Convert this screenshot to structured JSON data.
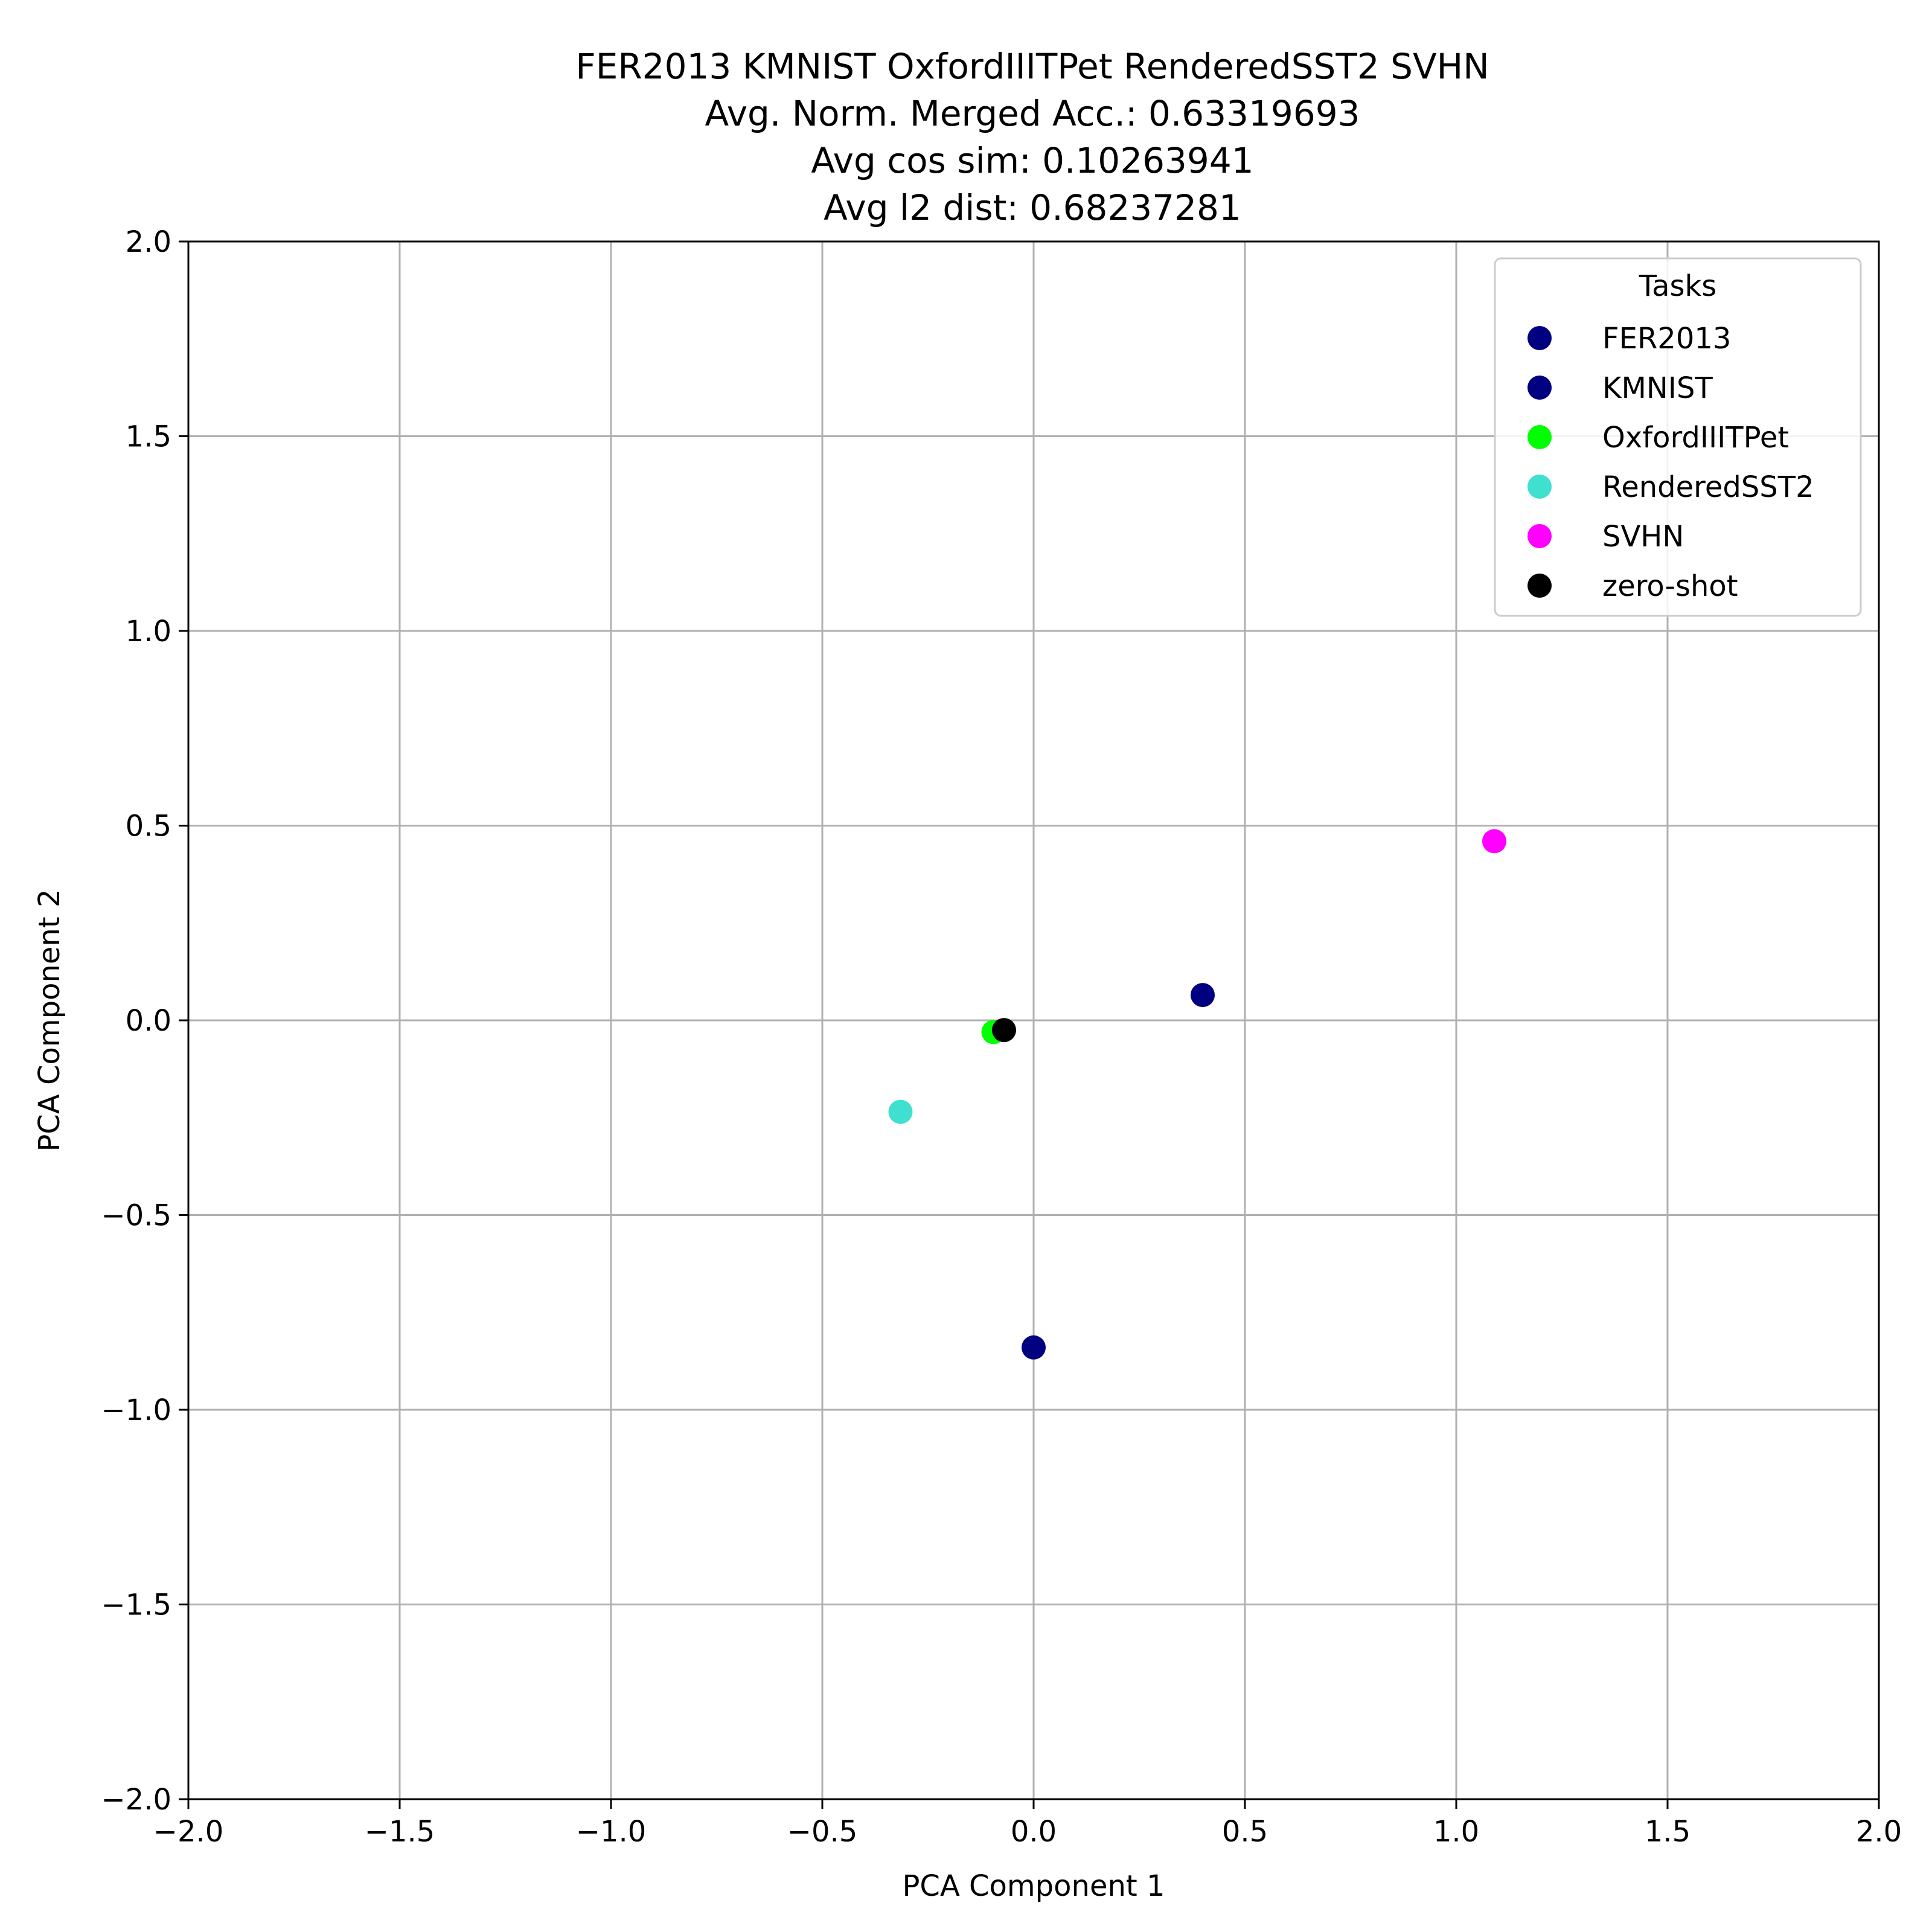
{
  "chart_data": {
    "type": "scatter",
    "title_lines": [
      "FER2013 KMNIST OxfordIIITPet RenderedSST2 SVHN",
      "Avg. Norm. Merged Acc.: 0.63319693",
      "Avg cos sim: 0.10263941",
      "Avg l2 dist: 0.68237281"
    ],
    "xlabel": "PCA Component 1",
    "ylabel": "PCA Component 2",
    "xlim": [
      -2.0,
      2.0
    ],
    "ylim": [
      -2.0,
      2.0
    ],
    "xticks": [
      -2.0,
      -1.5,
      -1.0,
      -0.5,
      0.0,
      0.5,
      1.0,
      1.5,
      2.0
    ],
    "yticks": [
      -2.0,
      -1.5,
      -1.0,
      -0.5,
      0.0,
      0.5,
      1.0,
      1.5,
      2.0
    ],
    "xtick_labels": [
      "−2.0",
      "−1.5",
      "−1.0",
      "−0.5",
      "0.0",
      "0.5",
      "1.0",
      "1.5",
      "2.0"
    ],
    "ytick_labels": [
      "−2.0",
      "−1.5",
      "−1.0",
      "−0.5",
      "0.0",
      "0.5",
      "1.0",
      "1.5",
      "2.0"
    ],
    "grid": true,
    "legend_title": "Tasks",
    "legend_position": "top-right",
    "series": [
      {
        "name": "FER2013",
        "color": "#000080",
        "points": [
          {
            "x": 0.4,
            "y": 0.065
          }
        ]
      },
      {
        "name": "KMNIST",
        "color": "#000080",
        "points": [
          {
            "x": 0.0,
            "y": -0.84
          }
        ]
      },
      {
        "name": "OxfordIIITPet",
        "color": "#00ff00",
        "points": [
          {
            "x": -0.095,
            "y": -0.03
          }
        ]
      },
      {
        "name": "RenderedSST2",
        "color": "#40e0d0",
        "points": [
          {
            "x": -0.315,
            "y": -0.235
          }
        ]
      },
      {
        "name": "SVHN",
        "color": "#ff00ff",
        "points": [
          {
            "x": 1.09,
            "y": 0.46
          }
        ]
      },
      {
        "name": "zero-shot",
        "color": "#000000",
        "points": [
          {
            "x": -0.07,
            "y": -0.025
          }
        ]
      }
    ]
  }
}
